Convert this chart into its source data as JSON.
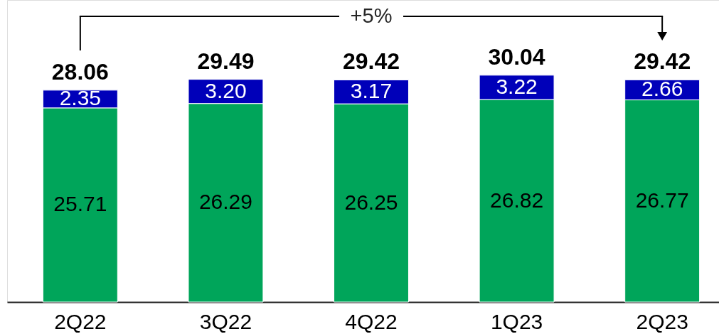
{
  "chart_data": {
    "type": "bar",
    "stacked": true,
    "categories": [
      "2Q22",
      "3Q22",
      "4Q22",
      "1Q23",
      "2Q23"
    ],
    "series": [
      {
        "color": "#00a55a",
        "values": [
          25.71,
          26.29,
          26.25,
          26.82,
          26.77
        ],
        "value_labels": [
          "25.71",
          "26.29",
          "26.25",
          "26.82",
          "26.77"
        ]
      },
      {
        "color": "#0000b9",
        "values": [
          2.35,
          3.2,
          3.17,
          3.22,
          2.66
        ],
        "value_labels": [
          "2.35",
          "3.20",
          "3.17",
          "3.22",
          "2.66"
        ]
      }
    ],
    "totals": [
      "28.06",
      "29.49",
      "29.42",
      "30.04",
      "29.42"
    ],
    "annotations": [
      "+5%"
    ],
    "ylim": [
      0,
      40
    ],
    "tick_labels": "x"
  }
}
